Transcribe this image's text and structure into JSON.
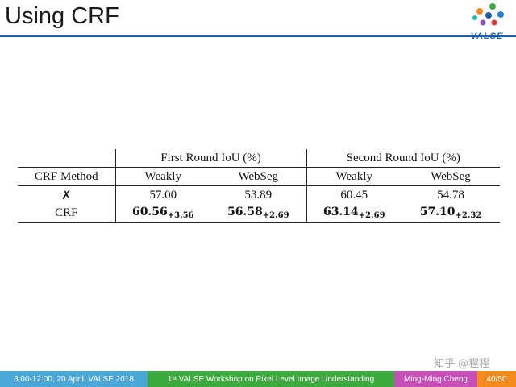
{
  "slide": {
    "title": "Using CRF",
    "logo_text": "VALSE"
  },
  "table": {
    "group_headers": [
      "First Round IoU (%)",
      "Second Round IoU (%)"
    ],
    "method_header": "CRF Method",
    "col_headers": [
      "Weakly",
      "WebSeg",
      "Weakly",
      "WebSeg"
    ],
    "rows": [
      {
        "method": "✗",
        "values": [
          "57.00",
          "53.89",
          "60.45",
          "54.78"
        ]
      },
      {
        "method": "CRF",
        "values": [
          "60.56",
          "56.58",
          "63.14",
          "57.10"
        ],
        "gains": [
          "+3.56",
          "+2.69",
          "+2.69",
          "+2.32"
        ]
      }
    ]
  },
  "watermark": "知乎 @程程",
  "footer": {
    "date": "8:00-12:00, 20 April, VALSE 2018",
    "workshop_num": "1",
    "workshop_sup": "st",
    "workshop_rest": " VALSE Workshop on Pixel Level Image Understanding",
    "author": "Ming-Ming Cheng",
    "page": "40/50",
    "colors": {
      "date": "#4aa7d8",
      "workshop": "#3daa3d",
      "author": "#c64fb8",
      "page": "#f28a1e"
    }
  }
}
